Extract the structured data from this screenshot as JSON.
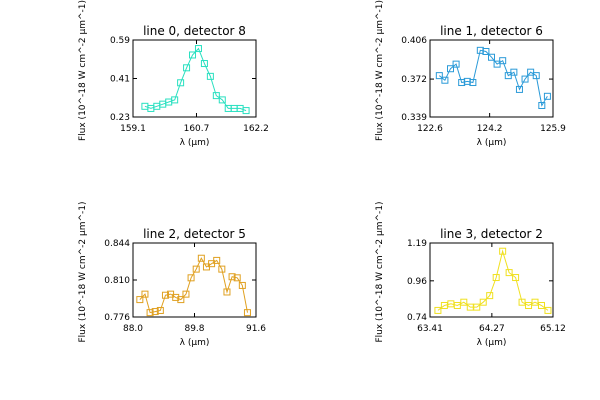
{
  "chart_data": [
    {
      "type": "line",
      "title": "line 0, detector 8",
      "xlabel": "λ (μm)",
      "ylabel": "Flux (10^-18 W cm^-2 μm^-1)",
      "color": "#28e0c0",
      "xlim": [
        159.1,
        162.2
      ],
      "ylim": [
        0.23,
        0.59
      ],
      "xticks": [
        "159.1",
        "160.7",
        "162.2"
      ],
      "yticks": [
        "0.23",
        "0.41",
        "0.59"
      ],
      "series": [
        {
          "x": [
            159.4,
            159.55,
            159.7,
            159.85,
            160.0,
            160.15,
            160.3,
            160.45,
            160.6,
            160.75,
            160.9,
            161.05,
            161.2,
            161.35,
            161.5,
            161.65,
            161.8,
            161.95
          ],
          "y": [
            0.28,
            0.27,
            0.28,
            0.29,
            0.3,
            0.31,
            0.39,
            0.46,
            0.52,
            0.55,
            0.48,
            0.42,
            0.33,
            0.31,
            0.27,
            0.27,
            0.27,
            0.26
          ]
        }
      ]
    },
    {
      "type": "line",
      "title": "line 1, detector 6",
      "xlabel": "λ (μm)",
      "ylabel": "Flux (10^-18 W cm^-2 μm^-1)",
      "color": "#2a9ad8",
      "xlim": [
        122.6,
        125.9
      ],
      "ylim": [
        0.339,
        0.406
      ],
      "xticks": [
        "122.6",
        "124.2",
        "125.9"
      ],
      "yticks": [
        "0.339",
        "0.372",
        "0.406"
      ],
      "series": [
        {
          "x": [
            122.85,
            123.0,
            123.15,
            123.3,
            123.45,
            123.6,
            123.75,
            123.95,
            124.1,
            124.25,
            124.4,
            124.55,
            124.7,
            124.85,
            125.0,
            125.15,
            125.3,
            125.45,
            125.6,
            125.75
          ],
          "y": [
            0.375,
            0.371,
            0.381,
            0.385,
            0.369,
            0.37,
            0.369,
            0.397,
            0.396,
            0.391,
            0.385,
            0.388,
            0.375,
            0.378,
            0.363,
            0.372,
            0.378,
            0.375,
            0.349,
            0.357
          ]
        }
      ]
    },
    {
      "type": "line",
      "title": "line 2, detector 5",
      "xlabel": "λ (μm)",
      "ylabel": "Flux (10^-18 W cm^-2 μm^-1)",
      "color": "#e0a020",
      "xlim": [
        88.0,
        91.6
      ],
      "ylim": [
        0.776,
        0.844
      ],
      "xticks": [
        "88.0",
        "89.8",
        "91.6"
      ],
      "yticks": [
        "0.776",
        "0.810",
        "0.844"
      ],
      "series": [
        {
          "x": [
            88.2,
            88.35,
            88.5,
            88.65,
            88.8,
            88.95,
            89.1,
            89.25,
            89.4,
            89.55,
            89.7,
            89.85,
            90.0,
            90.15,
            90.3,
            90.45,
            90.6,
            90.75,
            90.9,
            91.05,
            91.2,
            91.35
          ],
          "y": [
            0.792,
            0.797,
            0.78,
            0.781,
            0.782,
            0.796,
            0.797,
            0.794,
            0.792,
            0.797,
            0.812,
            0.82,
            0.83,
            0.822,
            0.825,
            0.828,
            0.82,
            0.799,
            0.813,
            0.812,
            0.805,
            0.78
          ]
        }
      ]
    },
    {
      "type": "line",
      "title": "line 3, detector 2",
      "xlabel": "λ (μm)",
      "ylabel": "Flux (10^-18 W cm^-2 μm^-1)",
      "color": "#f0e020",
      "xlim": [
        63.41,
        65.12
      ],
      "ylim": [
        0.74,
        1.19
      ],
      "xticks": [
        "63.41",
        "64.27",
        "65.12"
      ],
      "yticks": [
        "0.74",
        "0.96",
        "1.19"
      ],
      "series": [
        {
          "x": [
            63.52,
            63.61,
            63.7,
            63.79,
            63.88,
            63.97,
            64.06,
            64.15,
            64.24,
            64.33,
            64.42,
            64.51,
            64.6,
            64.69,
            64.78,
            64.87,
            64.96,
            65.05
          ],
          "y": [
            0.78,
            0.81,
            0.82,
            0.81,
            0.83,
            0.8,
            0.8,
            0.83,
            0.87,
            0.98,
            1.14,
            1.01,
            0.98,
            0.83,
            0.81,
            0.83,
            0.81,
            0.78
          ]
        }
      ]
    }
  ]
}
